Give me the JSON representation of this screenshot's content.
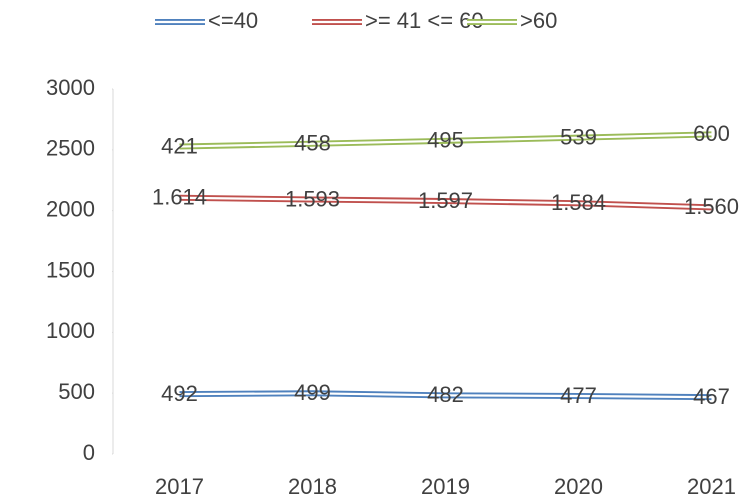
{
  "chart_data": {
    "type": "line",
    "stacked": true,
    "categories": [
      "2017",
      "2018",
      "2019",
      "2020",
      "2021"
    ],
    "series": [
      {
        "name": "<=40",
        "color": "#4f81bd",
        "values": [
          492,
          499,
          482,
          477,
          467
        ]
      },
      {
        "name": ">= 41 <= 60",
        "color": "#c0504d",
        "values": [
          1614,
          1593,
          1597,
          1584,
          1560
        ],
        "value_labels": [
          "1.614",
          "1.593",
          "1.597",
          "1.584",
          "1.560"
        ]
      },
      {
        "name": ">60",
        "color": "#9bbb59",
        "values": [
          421,
          458,
          495,
          539,
          600
        ]
      }
    ],
    "ylim": [
      0,
      3000
    ],
    "yticks": [
      0,
      500,
      1000,
      1500,
      2000,
      2500,
      3000
    ],
    "legend": "top",
    "grid": false
  }
}
